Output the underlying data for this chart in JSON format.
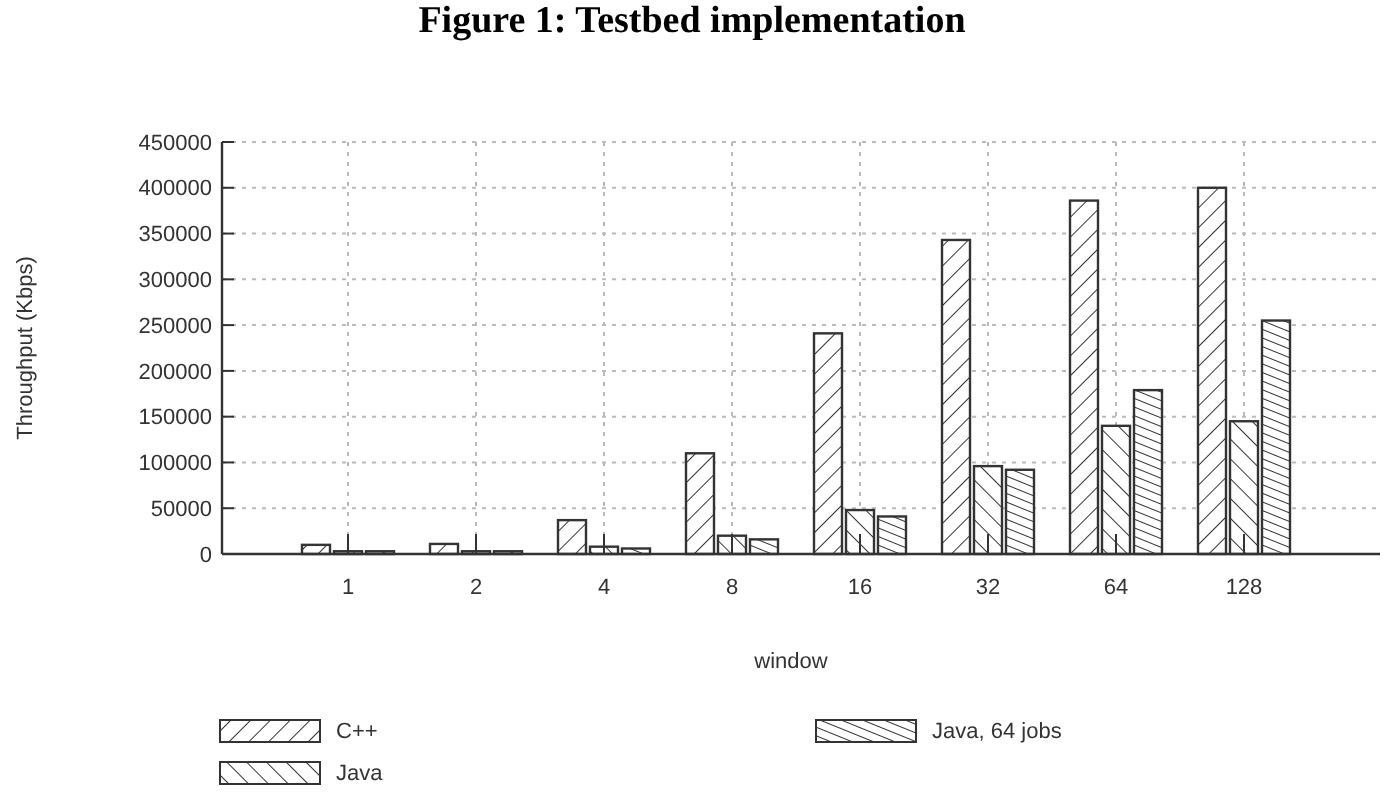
{
  "chart_data": {
    "type": "bar",
    "title": "Figure 1: Testbed implementation",
    "xlabel": "window",
    "ylabel": "Throughput (Kbps)",
    "categories": [
      "1",
      "2",
      "4",
      "8",
      "16",
      "32",
      "64",
      "128"
    ],
    "series": [
      {
        "name": "C++",
        "color": "#333333",
        "values": [
          10000,
          11000,
          37000,
          110000,
          241000,
          343000,
          386000,
          400000
        ]
      },
      {
        "name": "Java",
        "color": "#333333",
        "values": [
          3000,
          3000,
          8000,
          20000,
          48000,
          96000,
          140000,
          145000
        ]
      },
      {
        "name": "Java, 64 jobs",
        "color": "#333333",
        "values": [
          3000,
          3000,
          6000,
          16000,
          41000,
          92000,
          179000,
          255000
        ]
      }
    ],
    "ylim": [
      0,
      450000
    ],
    "yticks": [
      0,
      50000,
      100000,
      150000,
      200000,
      250000,
      300000,
      350000,
      400000,
      450000
    ],
    "grid": true,
    "legend": "bottom"
  }
}
